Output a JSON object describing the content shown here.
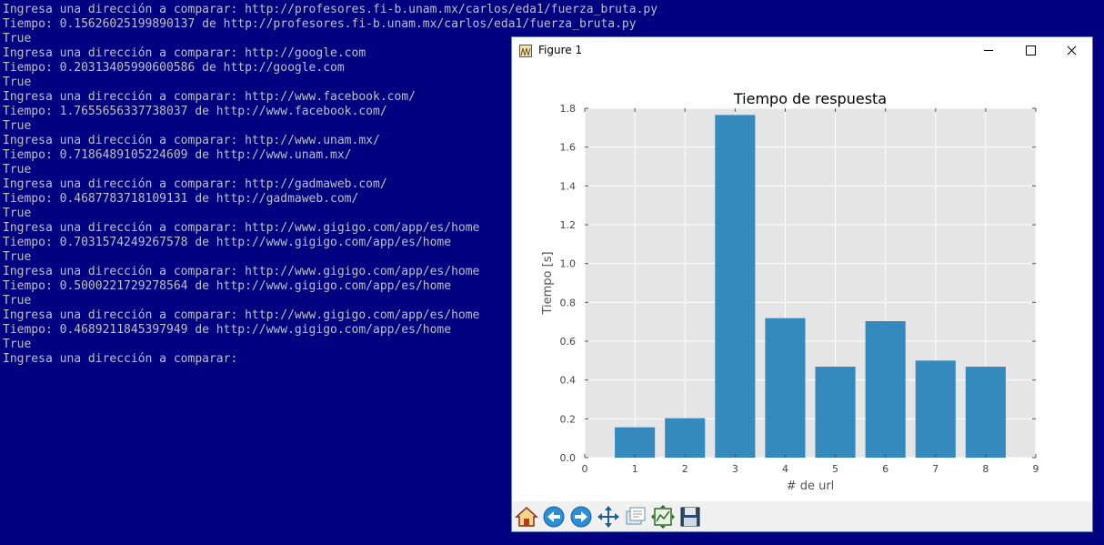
{
  "console": {
    "lines": [
      "Ingresa una dirección a comparar: http://profesores.fi-b.unam.mx/carlos/eda1/fuerza_bruta.py",
      "Tiempo: 0.15626025199890137 de http://profesores.fi-b.unam.mx/carlos/eda1/fuerza_bruta.py",
      "True",
      "Ingresa una dirección a comparar: http://google.com",
      "Tiempo: 0.20313405990600586 de http://google.com",
      "True",
      "Ingresa una dirección a comparar: http://www.facebook.com/",
      "Tiempo: 1.7655656337738037 de http://www.facebook.com/",
      "True",
      "Ingresa una dirección a comparar: http://www.unam.mx/",
      "Tiempo: 0.7186489105224609 de http://www.unam.mx/",
      "True",
      "Ingresa una dirección a comparar: http://gadmaweb.com/",
      "Tiempo: 0.4687783718109131 de http://gadmaweb.com/",
      "True",
      "Ingresa una dirección a comparar: http://www.gigigo.com/app/es/home",
      "Tiempo: 0.7031574249267578 de http://www.gigigo.com/app/es/home",
      "True",
      "Ingresa una dirección a comparar: http://www.gigigo.com/app/es/home",
      "Tiempo: 0.5000221729278564 de http://www.gigigo.com/app/es/home",
      "True",
      "Ingresa una dirección a comparar: http://www.gigigo.com/app/es/home",
      "Tiempo: 0.4689211845397949 de http://www.gigigo.com/app/es/home",
      "True",
      "Ingresa una dirección a comparar:"
    ],
    "background": "#000080",
    "text_color": "#c0c0c0"
  },
  "figure_window": {
    "title": "Figure 1",
    "window_controls": [
      "minimize-icon",
      "maximize-icon",
      "close-icon"
    ]
  },
  "toolbar": {
    "buttons": [
      {
        "name": "home-button",
        "icon": "home-icon"
      },
      {
        "name": "back-button",
        "icon": "arrow-left-icon"
      },
      {
        "name": "forward-button",
        "icon": "arrow-right-icon"
      },
      {
        "name": "pan-button",
        "icon": "move-arrows-icon"
      },
      {
        "name": "zoom-button",
        "icon": "zoom-rect-icon"
      },
      {
        "name": "subplots-button",
        "icon": "configure-subplots-icon"
      },
      {
        "name": "save-button",
        "icon": "floppy-disk-icon"
      }
    ]
  },
  "chart_data": {
    "type": "bar",
    "title": "Tiempo de respuesta",
    "xlabel": "# de url",
    "ylabel": "Tiempo [s]",
    "x": [
      1,
      2,
      3,
      4,
      5,
      6,
      7,
      8
    ],
    "values": [
      0.15626025199890137,
      0.20313405990600586,
      1.7655656337738037,
      0.7186489105224609,
      0.4687783718109131,
      0.7031574249267578,
      0.5000221729278564,
      0.4689211845397949
    ],
    "xlim": [
      0,
      9
    ],
    "ylim": [
      0,
      1.8
    ],
    "xticks": [
      "0",
      "1",
      "2",
      "3",
      "4",
      "5",
      "6",
      "7",
      "8",
      "9"
    ],
    "yticks": [
      "0.0",
      "0.2",
      "0.4",
      "0.6",
      "0.8",
      "1.0",
      "1.2",
      "1.4",
      "1.6",
      "1.8"
    ],
    "grid": true,
    "bar_color": "#348abd",
    "plot_background": "#e5e5e5"
  }
}
